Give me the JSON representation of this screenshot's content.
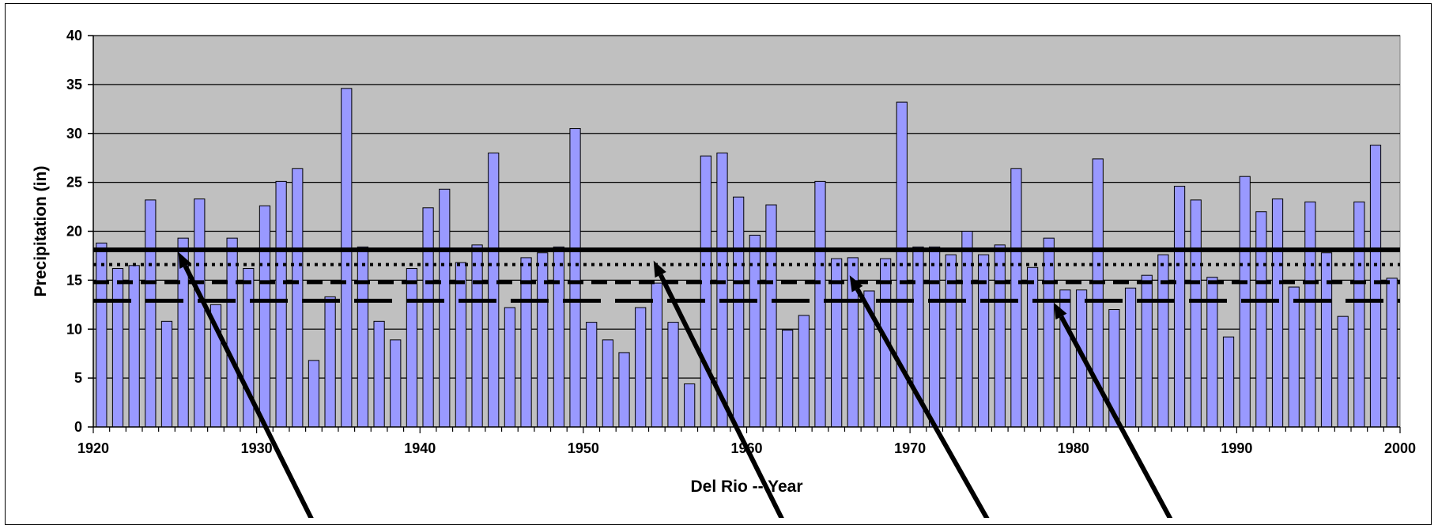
{
  "chart_data": {
    "type": "bar",
    "xlabel": "Del Rio -- Year",
    "ylabel": "Precipitation (in)",
    "xlim": [
      1920,
      2000
    ],
    "ylim": [
      0,
      40
    ],
    "x_ticks": [
      "1920",
      "1930",
      "1940",
      "1950",
      "1960",
      "1970",
      "1980",
      "1990",
      "2000"
    ],
    "y_ticks": [
      "0",
      "5",
      "10",
      "15",
      "20",
      "25",
      "30",
      "35",
      "40"
    ],
    "grid": true,
    "bar_color": "#9999ff",
    "plot_background": "#c0c0c0",
    "years": [
      1920,
      1921,
      1922,
      1923,
      1924,
      1925,
      1926,
      1927,
      1928,
      1929,
      1930,
      1931,
      1932,
      1933,
      1934,
      1935,
      1936,
      1937,
      1938,
      1939,
      1940,
      1941,
      1942,
      1943,
      1944,
      1945,
      1946,
      1947,
      1948,
      1949,
      1950,
      1951,
      1952,
      1953,
      1954,
      1955,
      1956,
      1957,
      1958,
      1959,
      1960,
      1961,
      1962,
      1963,
      1964,
      1965,
      1966,
      1967,
      1968,
      1969,
      1970,
      1971,
      1972,
      1973,
      1974,
      1975,
      1976,
      1977,
      1978,
      1979,
      1980,
      1981,
      1982,
      1983,
      1984,
      1985,
      1986,
      1987,
      1988,
      1989,
      1990,
      1991,
      1992,
      1993,
      1994,
      1995,
      1996,
      1997,
      1998,
      1999
    ],
    "values": [
      18.8,
      16.2,
      16.5,
      23.2,
      10.8,
      19.3,
      23.3,
      12.5,
      19.3,
      16.2,
      22.6,
      25.1,
      26.4,
      6.8,
      13.3,
      34.6,
      18.4,
      10.8,
      8.9,
      16.2,
      22.4,
      24.3,
      16.8,
      18.6,
      28.0,
      12.2,
      17.3,
      17.8,
      18.4,
      30.5,
      10.7,
      8.9,
      7.6,
      12.2,
      14.7,
      10.7,
      4.4,
      27.7,
      28.0,
      23.5,
      19.6,
      22.7,
      9.9,
      11.4,
      25.1,
      17.2,
      17.3,
      13.9,
      17.2,
      33.2,
      18.4,
      18.4,
      17.6,
      20.0,
      17.6,
      18.6,
      26.4,
      16.3,
      19.3,
      14.0,
      14.0,
      27.4,
      12.0,
      14.2,
      15.5,
      17.6,
      24.6,
      23.2,
      15.3,
      9.2,
      25.6,
      22.0,
      23.3,
      14.3,
      23.0,
      17.8,
      11.3,
      23.0,
      28.8,
      15.2
    ],
    "reference_lines": [
      {
        "value": 18.1,
        "style": "solid"
      },
      {
        "value": 16.6,
        "style": "dotted"
      },
      {
        "value": 14.8,
        "style": "dashed"
      },
      {
        "value": 12.9,
        "style": "long-dashed"
      }
    ],
    "arrows": [
      {
        "tip": [
          1925.2,
          17.9
        ],
        "tail": [
          1933.6,
          -10.2
        ]
      },
      {
        "tip": [
          1954.3,
          17.0
        ],
        "tail": [
          1962.4,
          -10.2
        ]
      },
      {
        "tip": [
          1966.3,
          15.5
        ],
        "tail": [
          1975.0,
          -10.2
        ]
      },
      {
        "tip": [
          1978.8,
          12.7
        ],
        "tail": [
          1986.2,
          -10.2
        ]
      }
    ]
  }
}
